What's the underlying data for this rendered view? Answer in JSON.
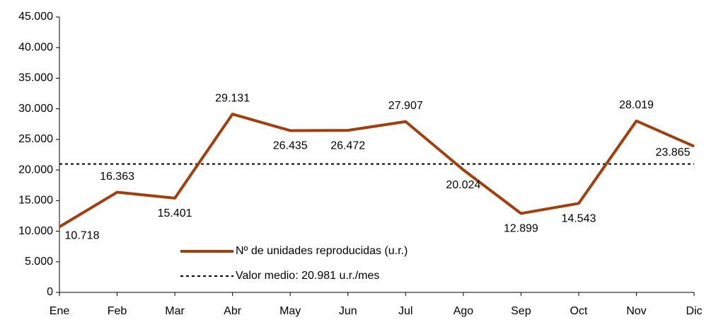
{
  "chart_data": {
    "type": "line",
    "categories": [
      "Ene",
      "Feb",
      "Mar",
      "Abr",
      "May",
      "Jun",
      "Jul",
      "Ago",
      "Sep",
      "Oct",
      "Nov",
      "Dic"
    ],
    "series": [
      {
        "name": "Nº de unidades reproducidas (u.r.)",
        "color": "#a0400f",
        "values": [
          10718,
          16363,
          15401,
          29131,
          26435,
          26472,
          27907,
          20024,
          12899,
          14543,
          28019,
          23865
        ],
        "value_labels": [
          "10.718",
          "16.363",
          "15.401",
          "29.131",
          "26.435",
          "26.472",
          "27.907",
          "20.024",
          "12.899",
          "14.543",
          "28.019",
          "23.865"
        ]
      }
    ],
    "reference_line": {
      "name": "Valor medio: 20.981 u.r./mes",
      "value": 20981,
      "color": "#000000"
    },
    "ylim": [
      0,
      45000
    ],
    "yticks": [
      0,
      {
        "value": 5000,
        "label": "5.000"
      },
      {
        "value": 10000,
        "label": "10.000"
      },
      {
        "value": 15000,
        "label": "15.000"
      },
      {
        "value": 20000,
        "label": "20.000"
      },
      {
        "value": 25000,
        "label": "25.000"
      },
      {
        "value": 30000,
        "label": "30.000"
      },
      {
        "value": 35000,
        "label": "35.000"
      },
      {
        "value": 40000,
        "label": "40.000"
      },
      {
        "value": 45000,
        "label": "45.000"
      }
    ],
    "grid": false
  }
}
